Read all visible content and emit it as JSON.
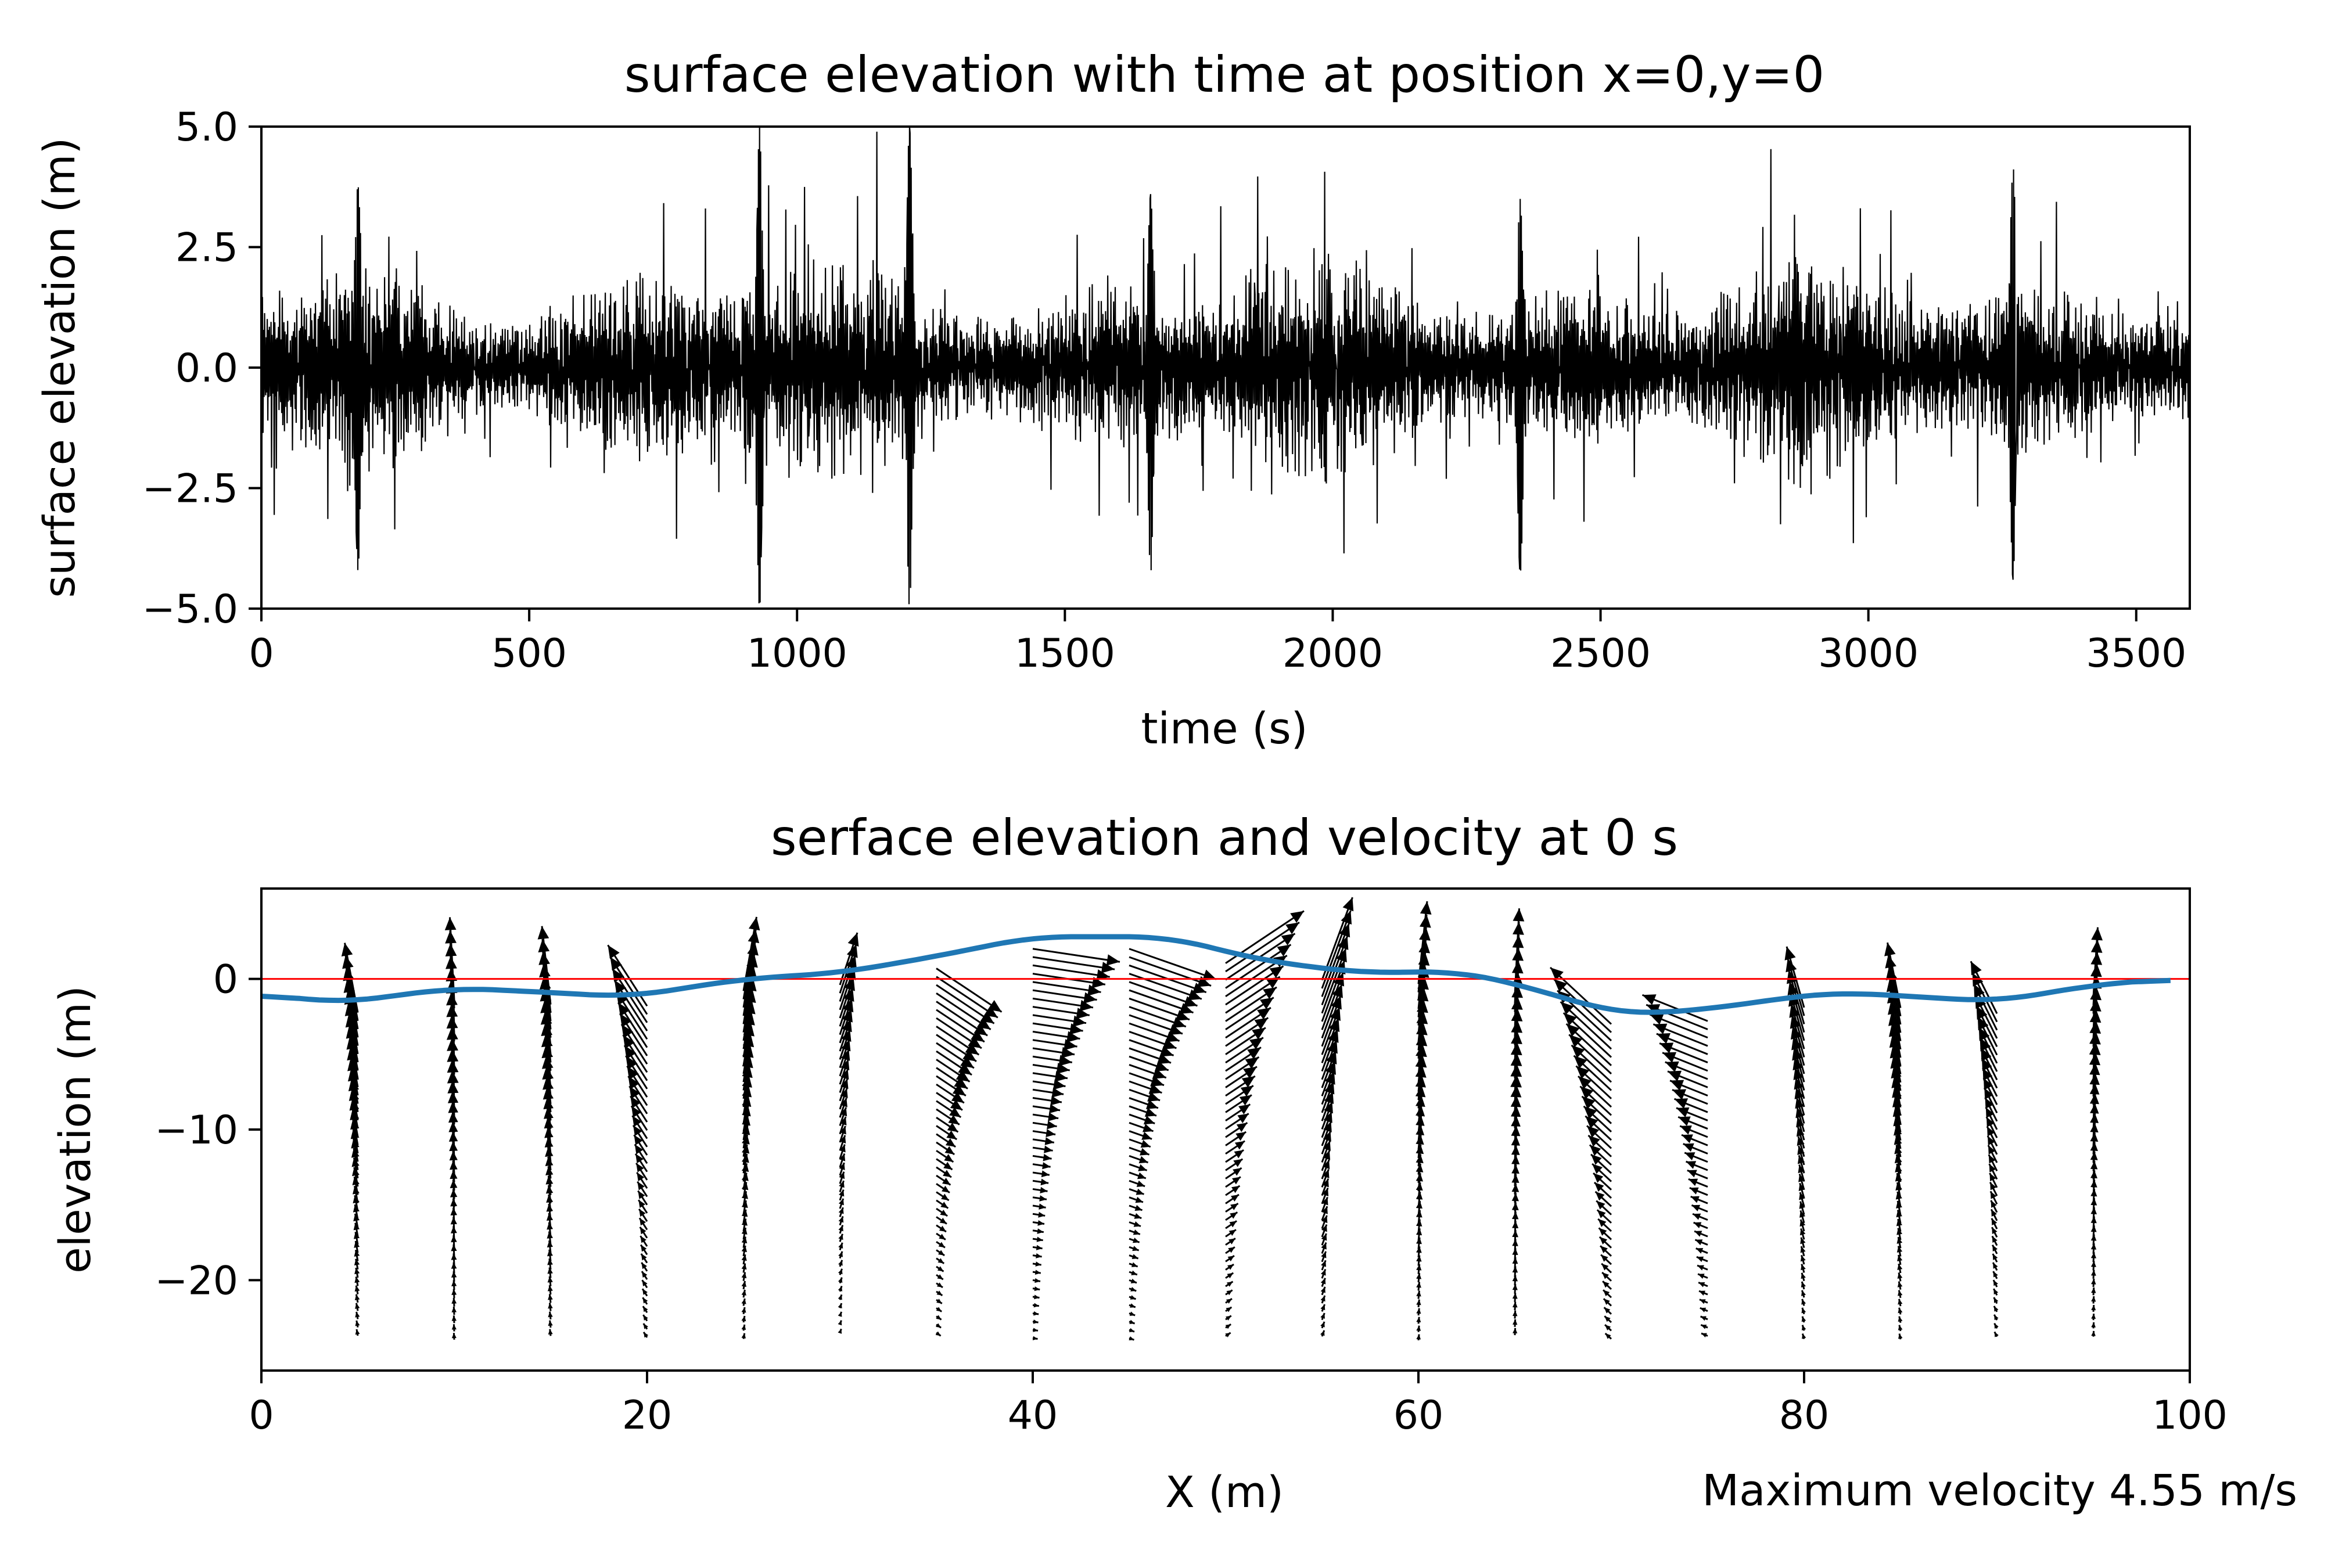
{
  "chart_data": [
    {
      "type": "line",
      "title": "surface elevation with time at position x=0,y=0",
      "xlabel": "time (s)",
      "ylabel": "surface elevation (m)",
      "xlim": [
        0,
        3600
      ],
      "ylim": [
        -5.0,
        5.0
      ],
      "xticks": [
        "0",
        "500",
        "1000",
        "1500",
        "2000",
        "2500",
        "3000",
        "3500"
      ],
      "xtick_values": [
        0,
        500,
        1000,
        1500,
        2000,
        2500,
        3000,
        3500
      ],
      "yticks": [
        "5.0",
        "2.5",
        "0.0",
        "−2.5",
        "−5.0"
      ],
      "ytick_values": [
        5.0,
        2.5,
        0.0,
        -2.5,
        -5.0
      ],
      "series": [
        {
          "name": "surface elevation",
          "color": "#000000",
          "description": "random wave record, ~1 s sampling, amplitude mostly within ±3 m with peaks near ±5 m around t≈930 s and t≈1210 s",
          "sample_interval_s": 1,
          "envelope_peaks": [
            {
              "t": 180,
              "max": 3.8,
              "min": -4.2
            },
            {
              "t": 930,
              "max": 5.0,
              "min": -5.0
            },
            {
              "t": 1210,
              "max": 5.0,
              "min": -5.0
            },
            {
              "t": 1660,
              "max": 3.6,
              "min": -4.3
            },
            {
              "t": 2350,
              "max": 3.5,
              "min": -4.3
            },
            {
              "t": 3270,
              "max": 4.2,
              "min": -4.4
            }
          ]
        }
      ]
    },
    {
      "type": "line",
      "title": "serface elevation and velocity at 0 s",
      "xlabel": "X (m)",
      "ylabel": "elevation (m)",
      "annotation": "Maximum velocity 4.55 m/s",
      "xlim": [
        0,
        100
      ],
      "ylim": [
        -26,
        6
      ],
      "xticks": [
        "0",
        "20",
        "40",
        "60",
        "80",
        "100"
      ],
      "xtick_values": [
        0,
        20,
        40,
        60,
        80,
        100
      ],
      "yticks": [
        "0",
        "−10",
        "−20"
      ],
      "ytick_values": [
        0,
        -10,
        -20
      ],
      "series": [
        {
          "name": "surface elevation",
          "color": "#1f77b4",
          "x": [
            0,
            4,
            10,
            15,
            19,
            25,
            30,
            35,
            40,
            47,
            52,
            57,
            62,
            65,
            70,
            72,
            75,
            80,
            82,
            90,
            95,
            99
          ],
          "y": [
            -1.0,
            -1.6,
            -0.6,
            -0.9,
            -1.2,
            0.0,
            0.4,
            1.5,
            2.8,
            2.8,
            1.2,
            0.4,
            0.5,
            -0.3,
            -2.2,
            -2.3,
            -2.0,
            -1.1,
            -0.9,
            -1.5,
            -0.4,
            0.0
          ]
        },
        {
          "name": "still water level",
          "color": "#ff0000",
          "x": [
            0,
            100
          ],
          "y": [
            0,
            0
          ]
        }
      ],
      "velocity_columns": {
        "description": "quiver arrows of water-particle velocity at columns every 5 m, from surface down to about −24 m; arrow lengths decay with depth",
        "x_positions": [
          5,
          10,
          15,
          20,
          25,
          30,
          35,
          40,
          45,
          50,
          55,
          60,
          65,
          70,
          75,
          80,
          85,
          90,
          95
        ],
        "u_surface": [
          -0.15,
          -0.05,
          -0.1,
          -0.45,
          0.15,
          0.2,
          0.75,
          1.0,
          1.0,
          0.9,
          0.35,
          0.1,
          0.05,
          -0.7,
          -0.75,
          -0.2,
          -0.15,
          -0.3,
          0.05
        ],
        "w_surface": [
          0.8,
          0.95,
          0.9,
          0.7,
          0.85,
          0.6,
          -0.5,
          -0.15,
          -0.35,
          0.6,
          0.95,
          0.95,
          1.0,
          0.65,
          0.3,
          0.7,
          0.75,
          0.6,
          0.8
        ],
        "max_velocity_ms": 4.55,
        "arrow_color": "#000000"
      }
    }
  ]
}
